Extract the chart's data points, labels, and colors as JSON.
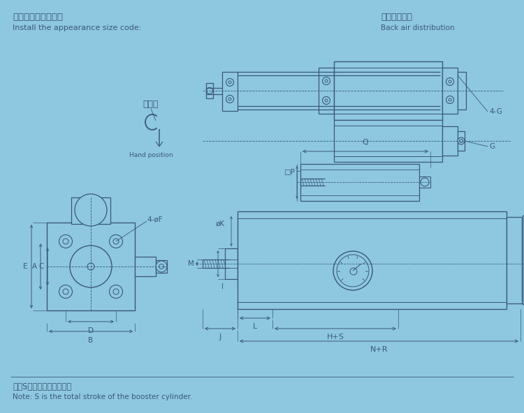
{
  "bg_color": "#8ec8e0",
  "lc": "#3a5878",
  "title_cn": "安裝外觀尺寸代碼：",
  "title_en": "Install the appearance size code:",
  "back_cn": "背面氣口分布",
  "back_en": "Back air distribution",
  "note_cn": "注：S為增壓缸的總行程。",
  "note_en": "Note: S is the total stroke of the booster cylinder.",
  "hand_cn": "扳手位",
  "hand_en": "Hand position"
}
